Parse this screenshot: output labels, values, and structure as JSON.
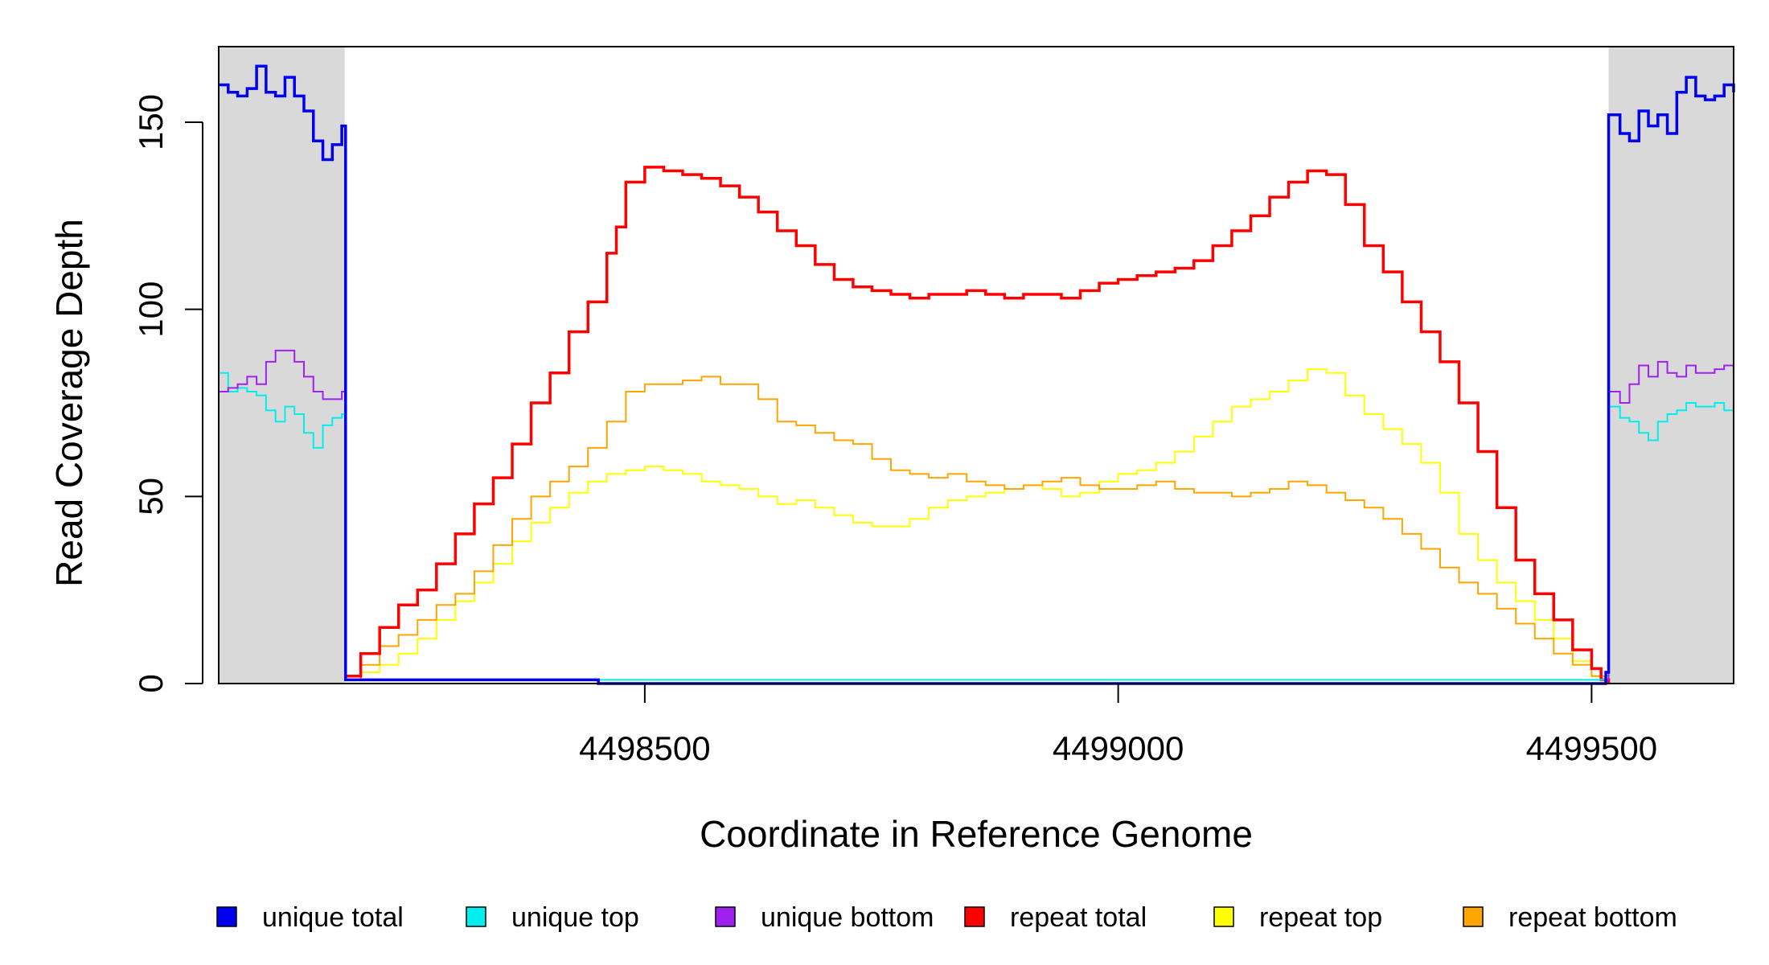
{
  "chart_data": {
    "type": "line",
    "title": "",
    "xlabel": "Coordinate in Reference Genome",
    "ylabel": "Read Coverage Depth",
    "xlim": [
      4498050,
      4499650
    ],
    "ylim": [
      0,
      170
    ],
    "x_ticks": [
      4498500,
      4499000,
      4499500
    ],
    "y_ticks": [
      0,
      50,
      100,
      150
    ],
    "grid": false,
    "legend_position": "bottom",
    "shaded_regions": [
      {
        "x_start": 4498050,
        "x_end": 4498183,
        "color": "#d9d9d9"
      },
      {
        "x_start": 4499518,
        "x_end": 4499650,
        "color": "#d9d9d9"
      }
    ],
    "series": [
      {
        "name": "unique total",
        "color": "#0000ee",
        "x": [
          4498050,
          4498060,
          4498070,
          4498080,
          4498090,
          4498100,
          4498110,
          4498120,
          4498130,
          4498140,
          4498150,
          4498160,
          4498170,
          4498180,
          4498183,
          4498184,
          4498450,
          4498451,
          4499510,
          4499515,
          4499518,
          4499530,
          4499540,
          4499550,
          4499560,
          4499570,
          4499580,
          4499590,
          4499600,
          4499610,
          4499620,
          4499630,
          4499640,
          4499650
        ],
        "y": [
          160,
          158,
          157,
          159,
          165,
          158,
          157,
          162,
          157,
          153,
          145,
          140,
          144,
          149,
          149,
          1,
          1,
          0,
          0,
          3,
          152,
          147,
          145,
          153,
          149,
          152,
          147,
          158,
          162,
          157,
          156,
          157,
          160,
          158
        ]
      },
      {
        "name": "unique top",
        "color": "#00eeee",
        "x": [
          4498050,
          4498060,
          4498070,
          4498080,
          4498090,
          4498100,
          4498110,
          4498120,
          4498130,
          4498140,
          4498150,
          4498160,
          4498170,
          4498180,
          4498183,
          4498184,
          4499515,
          4499518,
          4499530,
          4499540,
          4499550,
          4499560,
          4499570,
          4499580,
          4499590,
          4499600,
          4499610,
          4499620,
          4499630,
          4499640,
          4499650
        ],
        "y": [
          83,
          78,
          79,
          78,
          77,
          73,
          70,
          74,
          72,
          67,
          63,
          69,
          71,
          72,
          72,
          1,
          2,
          74,
          71,
          70,
          67,
          65,
          70,
          72,
          73,
          75,
          74,
          74,
          75,
          73,
          70
        ]
      },
      {
        "name": "unique bottom",
        "color": "#a020f0",
        "x": [
          4498050,
          4498060,
          4498070,
          4498080,
          4498090,
          4498100,
          4498110,
          4498120,
          4498130,
          4498140,
          4498150,
          4498160,
          4498170,
          4498180,
          4498183,
          4498184,
          4498450,
          4498451,
          4499515,
          4499518,
          4499530,
          4499540,
          4499550,
          4499560,
          4499570,
          4499580,
          4499590,
          4499600,
          4499610,
          4499620,
          4499630,
          4499640,
          4499650
        ],
        "y": [
          78,
          79,
          80,
          82,
          80,
          86,
          89,
          89,
          86,
          82,
          78,
          76,
          76,
          78,
          78,
          1,
          1,
          0,
          1,
          78,
          75,
          80,
          85,
          82,
          86,
          83,
          82,
          85,
          83,
          83,
          84,
          85,
          84
        ]
      },
      {
        "name": "repeat total",
        "color": "#ff0000",
        "x": [
          4498183,
          4498200,
          4498220,
          4498240,
          4498260,
          4498280,
          4498300,
          4498320,
          4498340,
          4498360,
          4498380,
          4498400,
          4498420,
          4498440,
          4498460,
          4498470,
          4498480,
          4498500,
          4498520,
          4498540,
          4498560,
          4498580,
          4498600,
          4498620,
          4498640,
          4498660,
          4498680,
          4498700,
          4498720,
          4498740,
          4498760,
          4498780,
          4498800,
          4498820,
          4498840,
          4498860,
          4498880,
          4498900,
          4498920,
          4498940,
          4498960,
          4498980,
          4499000,
          4499020,
          4499040,
          4499060,
          4499080,
          4499100,
          4499120,
          4499140,
          4499160,
          4499180,
          4499200,
          4499220,
          4499240,
          4499260,
          4499280,
          4499300,
          4499320,
          4499340,
          4499360,
          4499380,
          4499400,
          4499420,
          4499440,
          4499460,
          4499480,
          4499500,
          4499510,
          4499518
        ],
        "y": [
          2,
          8,
          15,
          21,
          25,
          32,
          40,
          48,
          55,
          64,
          75,
          83,
          94,
          102,
          115,
          122,
          134,
          138,
          137,
          136,
          135,
          133,
          130,
          126,
          121,
          117,
          112,
          108,
          106,
          105,
          104,
          103,
          104,
          104,
          105,
          104,
          103,
          104,
          104,
          103,
          105,
          107,
          108,
          109,
          110,
          111,
          113,
          117,
          121,
          125,
          130,
          134,
          137,
          136,
          128,
          117,
          110,
          102,
          94,
          86,
          75,
          62,
          47,
          33,
          24,
          17,
          9,
          4,
          1,
          0
        ]
      },
      {
        "name": "repeat top",
        "color": "#ffff00",
        "x": [
          4498183,
          4498200,
          4498220,
          4498240,
          4498260,
          4498280,
          4498300,
          4498320,
          4498340,
          4498360,
          4498380,
          4498400,
          4498420,
          4498440,
          4498460,
          4498480,
          4498500,
          4498520,
          4498540,
          4498560,
          4498580,
          4498600,
          4498620,
          4498640,
          4498660,
          4498680,
          4498700,
          4498720,
          4498740,
          4498760,
          4498780,
          4498800,
          4498820,
          4498840,
          4498860,
          4498880,
          4498900,
          4498920,
          4498940,
          4498960,
          4498980,
          4499000,
          4499020,
          4499040,
          4499060,
          4499080,
          4499100,
          4499120,
          4499140,
          4499160,
          4499180,
          4499200,
          4499220,
          4499240,
          4499260,
          4499280,
          4499300,
          4499320,
          4499340,
          4499360,
          4499380,
          4499400,
          4499420,
          4499440,
          4499460,
          4499480,
          4499500,
          4499518
        ],
        "y": [
          1,
          3,
          5,
          8,
          12,
          17,
          22,
          27,
          32,
          38,
          43,
          47,
          51,
          54,
          56,
          57,
          58,
          57,
          56,
          54,
          53,
          52,
          50,
          48,
          49,
          47,
          45,
          43,
          42,
          42,
          44,
          47,
          49,
          50,
          51,
          52,
          53,
          52,
          50,
          51,
          54,
          56,
          57,
          59,
          62,
          66,
          70,
          74,
          76,
          78,
          81,
          84,
          83,
          77,
          72,
          68,
          64,
          59,
          51,
          40,
          33,
          27,
          22,
          17,
          12,
          6,
          2,
          0
        ]
      },
      {
        "name": "repeat bottom",
        "color": "#ffa500",
        "x": [
          4498183,
          4498200,
          4498220,
          4498240,
          4498260,
          4498280,
          4498300,
          4498320,
          4498340,
          4498360,
          4498380,
          4498400,
          4498420,
          4498440,
          4498460,
          4498480,
          4498500,
          4498520,
          4498540,
          4498560,
          4498580,
          4498600,
          4498620,
          4498640,
          4498660,
          4498680,
          4498700,
          4498720,
          4498740,
          4498760,
          4498780,
          4498800,
          4498820,
          4498840,
          4498860,
          4498880,
          4498900,
          4498920,
          4498940,
          4498960,
          4498980,
          4499000,
          4499020,
          4499040,
          4499060,
          4499080,
          4499100,
          4499120,
          4499140,
          4499160,
          4499180,
          4499200,
          4499220,
          4499240,
          4499260,
          4499280,
          4499300,
          4499320,
          4499340,
          4499360,
          4499380,
          4499400,
          4499420,
          4499440,
          4499460,
          4499480,
          4499500,
          4499518
        ],
        "y": [
          1,
          5,
          10,
          13,
          17,
          21,
          24,
          30,
          37,
          44,
          50,
          54,
          58,
          63,
          70,
          78,
          80,
          80,
          81,
          82,
          80,
          80,
          76,
          70,
          69,
          67,
          65,
          64,
          60,
          57,
          56,
          55,
          56,
          54,
          53,
          52,
          53,
          54,
          55,
          53,
          52,
          52,
          53,
          54,
          52,
          51,
          51,
          50,
          51,
          52,
          54,
          53,
          51,
          49,
          47,
          44,
          40,
          36,
          31,
          27,
          24,
          20,
          16,
          12,
          8,
          5,
          2,
          0
        ]
      }
    ]
  }
}
